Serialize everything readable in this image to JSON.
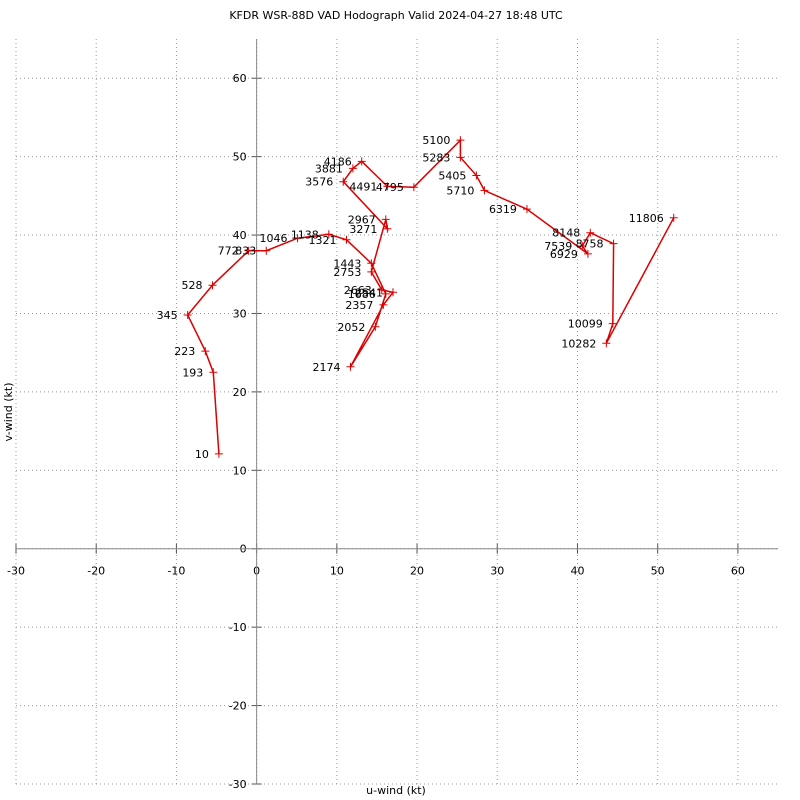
{
  "chart_data": {
    "type": "line",
    "title": "KFDR WSR-88D VAD Hodograph Valid 2024-04-27 18:48 UTC",
    "x_label": "u-wind (kt)",
    "y_label": "v-wind (kt)",
    "xlim": [
      -30,
      65
    ],
    "ylim": [
      -30,
      65
    ],
    "xticks": [
      -30,
      -20,
      -10,
      0,
      10,
      20,
      30,
      40,
      50,
      60
    ],
    "yticks": [
      -30,
      -20,
      -10,
      0,
      10,
      20,
      30,
      40,
      50,
      60
    ],
    "grid": true,
    "x": [
      -4.7,
      -5.4,
      -6.4,
      -8.6,
      -5.5,
      -1.0,
      1.2,
      5.1,
      9.0,
      11.2,
      14.3,
      16.1,
      14.8,
      11.7,
      15.8,
      17.0,
      15.6,
      14.3,
      16.1,
      16.3,
      10.8,
      12.0,
      13.1,
      16.3,
      19.6,
      25.4,
      25.4,
      27.4,
      28.4,
      33.7,
      41.3,
      40.6,
      41.6,
      44.5,
      44.4,
      43.6,
      52.0
    ],
    "point_labels": [
      "10",
      "193",
      "223",
      "345",
      "528",
      "772",
      "833",
      "1046",
      "1138",
      "1321",
      "1443",
      "1686",
      "2052",
      "2174",
      "2357",
      "2541",
      "2663",
      "2753",
      "2967",
      "3271",
      "3576",
      "3881",
      "4186",
      "4491",
      "4795",
      "5100",
      "5283",
      "5405",
      "5710",
      "6319",
      "6929",
      "7539",
      "8148",
      "8758",
      "10099",
      "10282",
      "11806"
    ],
    "series": [
      {
        "color": "#dd0000",
        "values": [
          12.1,
          22.5,
          25.2,
          29.8,
          33.6,
          38.0,
          38.0,
          39.6,
          40.1,
          39.4,
          36.4,
          32.5,
          28.3,
          23.2,
          31.1,
          32.7,
          33.0,
          35.3,
          42.0,
          40.8,
          46.8,
          48.5,
          49.4,
          46.2,
          46.1,
          52.1,
          49.9,
          47.6,
          45.7,
          43.3,
          37.6,
          38.6,
          40.3,
          38.9,
          28.7,
          26.2,
          42.2
        ]
      }
    ]
  }
}
